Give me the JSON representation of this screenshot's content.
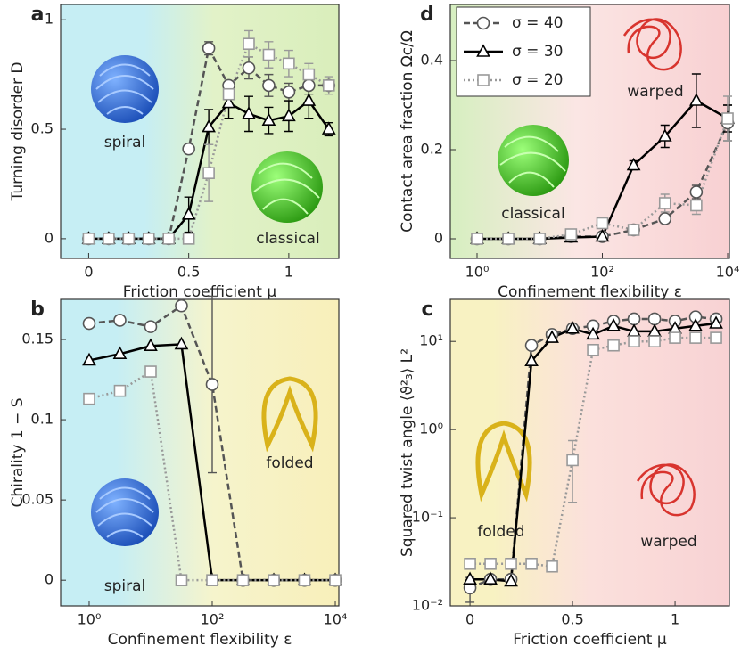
{
  "chart_data": [
    {
      "type": "line",
      "panel": "a",
      "xlabel": "Friction coefficient μ",
      "ylabel": "Turning disorder D",
      "annotations": [
        "spiral",
        "classical"
      ],
      "x": [
        0,
        0.1,
        0.2,
        0.3,
        0.4,
        0.5,
        0.6,
        0.7,
        0.8,
        0.9,
        1.0,
        1.1,
        1.2
      ],
      "xlim": [
        -0.14,
        1.25
      ],
      "xticks": [
        0,
        0.5,
        1
      ],
      "ylim": [
        -0.09,
        1.07
      ],
      "yticks": [
        0,
        0.5,
        1
      ],
      "series": [
        {
          "color": "#555555",
          "marker": "circle",
          "dash": "dashed",
          "values": [
            0,
            0,
            0,
            0,
            0,
            0.41,
            0.87,
            0.7,
            0.78,
            0.7,
            0.67,
            0.7,
            0.7
          ],
          "errors": [
            null,
            null,
            null,
            null,
            null,
            null,
            0.03,
            null,
            0.05,
            0.05,
            0.04,
            0.04,
            null
          ]
        },
        {
          "color": "#000000",
          "marker": "triangle",
          "dash": "solid",
          "values": [
            0,
            0,
            0,
            0,
            0,
            0.11,
            0.51,
            0.62,
            0.57,
            0.54,
            0.56,
            0.63,
            0.5
          ],
          "errors": [
            null,
            null,
            null,
            null,
            null,
            0.08,
            0.08,
            0.07,
            0.08,
            0.06,
            0.07,
            0.08,
            0.03
          ]
        },
        {
          "color": "#999999",
          "marker": "square",
          "dash": "dotted",
          "values": [
            0,
            0,
            0,
            0,
            0,
            0,
            0.3,
            0.66,
            0.89,
            0.84,
            0.8,
            0.75,
            0.7
          ],
          "errors": [
            null,
            null,
            null,
            null,
            null,
            null,
            0.13,
            null,
            0.06,
            0.06,
            0.06,
            0.05,
            0.04
          ]
        }
      ]
    },
    {
      "type": "line",
      "panel": "b",
      "xlabel": "Confinement flexibility ε",
      "ylabel": "Chirality 1 − S",
      "annotations": [
        "spiral",
        "folded"
      ],
      "xscale": "log",
      "x": [
        1,
        3.16,
        10,
        31.6,
        100,
        316,
        1000,
        3160,
        10000
      ],
      "xlim": [
        0.344,
        11420
      ],
      "xticks": [
        {
          "value": 1,
          "label": "10⁰"
        },
        {
          "value": 100,
          "label": "10²"
        },
        {
          "value": 10000,
          "label": "10⁴"
        }
      ],
      "ylim": [
        -0.016,
        0.175
      ],
      "yticks": [
        0,
        0.05,
        0.1,
        0.15
      ],
      "series": [
        {
          "color": "#555555",
          "marker": "circle",
          "dash": "dashed",
          "values": [
            0.16,
            0.162,
            0.158,
            0.171,
            0.122,
            0,
            0,
            0,
            0
          ],
          "errors": [
            null,
            null,
            null,
            null,
            0.055,
            null,
            null,
            null,
            null
          ]
        },
        {
          "color": "#000000",
          "marker": "triangle",
          "dash": "solid",
          "values": [
            0.137,
            0.141,
            0.146,
            0.147,
            0,
            0,
            0,
            0,
            0
          ],
          "errors": [
            null,
            null,
            null,
            null,
            null,
            null,
            null,
            null,
            null
          ]
        },
        {
          "color": "#999999",
          "marker": "square",
          "dash": "dotted",
          "values": [
            0.113,
            0.118,
            0.13,
            0,
            0,
            0,
            0,
            0,
            0
          ],
          "errors": [
            null,
            null,
            null,
            null,
            null,
            null,
            null,
            null,
            null
          ]
        }
      ]
    },
    {
      "type": "line",
      "panel": "c",
      "xlabel": "Friction coefficient μ",
      "ylabel": "Squared twist angle ⟨ϑ²₃⟩ L²",
      "annotations": [
        "folded",
        "warped"
      ],
      "yscale": "log",
      "x": [
        0,
        0.1,
        0.2,
        0.3,
        0.4,
        0.5,
        0.6,
        0.7,
        0.8,
        0.9,
        1.0,
        1.1,
        1.2
      ],
      "xlim": [
        -0.096,
        1.265
      ],
      "xticks": [
        0,
        0.5,
        1
      ],
      "ylim": [
        0.01,
        30
      ],
      "yticks": [
        {
          "value": 0.01,
          "label": "10⁻²"
        },
        {
          "value": 0.1,
          "label": "10⁻¹"
        },
        {
          "value": 1,
          "label": "10⁰"
        },
        {
          "value": 10,
          "label": "10¹"
        }
      ],
      "series": [
        {
          "color": "#555555",
          "marker": "circle",
          "dash": "dashed",
          "values": [
            0.016,
            0.02,
            0.02,
            9,
            12,
            14,
            15,
            17,
            18,
            18,
            17,
            19,
            18
          ],
          "errors": [
            0.005,
            null,
            null,
            null,
            null,
            null,
            null,
            null,
            null,
            null,
            null,
            null,
            null
          ]
        },
        {
          "color": "#000000",
          "marker": "triangle",
          "dash": "solid",
          "values": [
            0.02,
            0.02,
            0.019,
            6,
            11,
            14,
            12,
            15,
            13,
            13,
            14,
            15,
            16
          ],
          "errors": [
            null,
            null,
            null,
            null,
            null,
            null,
            null,
            null,
            null,
            null,
            null,
            null,
            null
          ]
        },
        {
          "color": "#999999",
          "marker": "square",
          "dash": "dotted",
          "values": [
            0.03,
            0.03,
            0.03,
            0.03,
            0.028,
            0.45,
            8,
            9,
            10,
            10,
            11,
            11,
            11
          ],
          "errors": [
            null,
            null,
            null,
            null,
            null,
            0.3,
            null,
            null,
            null,
            null,
            null,
            null,
            null
          ]
        }
      ]
    },
    {
      "type": "line",
      "panel": "d",
      "xlabel": "Confinement flexibility ε",
      "ylabel": "Contact area fraction  Ωc/Ω",
      "annotations": [
        "classical",
        "warped"
      ],
      "xscale": "log",
      "legend": "upper left",
      "x": [
        1,
        3.16,
        10,
        31.6,
        100,
        316,
        1000,
        3160,
        10000
      ],
      "xlim": [
        0.374,
        10670
      ],
      "xticks": [
        {
          "value": 1,
          "label": "10⁰"
        },
        {
          "value": 100,
          "label": "10²"
        },
        {
          "value": 10000,
          "label": "10⁴"
        }
      ],
      "ylim": [
        -0.044,
        0.526
      ],
      "yticks": [
        0,
        0.2,
        0.4
      ],
      "series": [
        {
          "name": "σ = 40",
          "color": "#555555",
          "marker": "circle",
          "dash": "dashed",
          "values": [
            0,
            0,
            0,
            0.005,
            0.005,
            0.02,
            0.045,
            0.105,
            0.26
          ],
          "errors": [
            null,
            null,
            null,
            null,
            null,
            null,
            0.01,
            0.015,
            0.04
          ]
        },
        {
          "name": "σ = 30",
          "color": "#000000",
          "marker": "triangle",
          "dash": "solid",
          "values": [
            0,
            0,
            0,
            0.003,
            0.005,
            0.165,
            0.23,
            0.31,
            0.27
          ],
          "errors": [
            null,
            null,
            null,
            null,
            null,
            0.01,
            0.025,
            0.06,
            0.03
          ]
        },
        {
          "name": "σ = 20",
          "color": "#999999",
          "marker": "square",
          "dash": "dotted",
          "values": [
            0,
            0,
            0,
            0.01,
            0.035,
            0.02,
            0.08,
            0.075,
            0.27
          ],
          "errors": [
            null,
            null,
            null,
            null,
            0.01,
            null,
            0.02,
            0.02,
            0.05
          ]
        }
      ]
    }
  ]
}
